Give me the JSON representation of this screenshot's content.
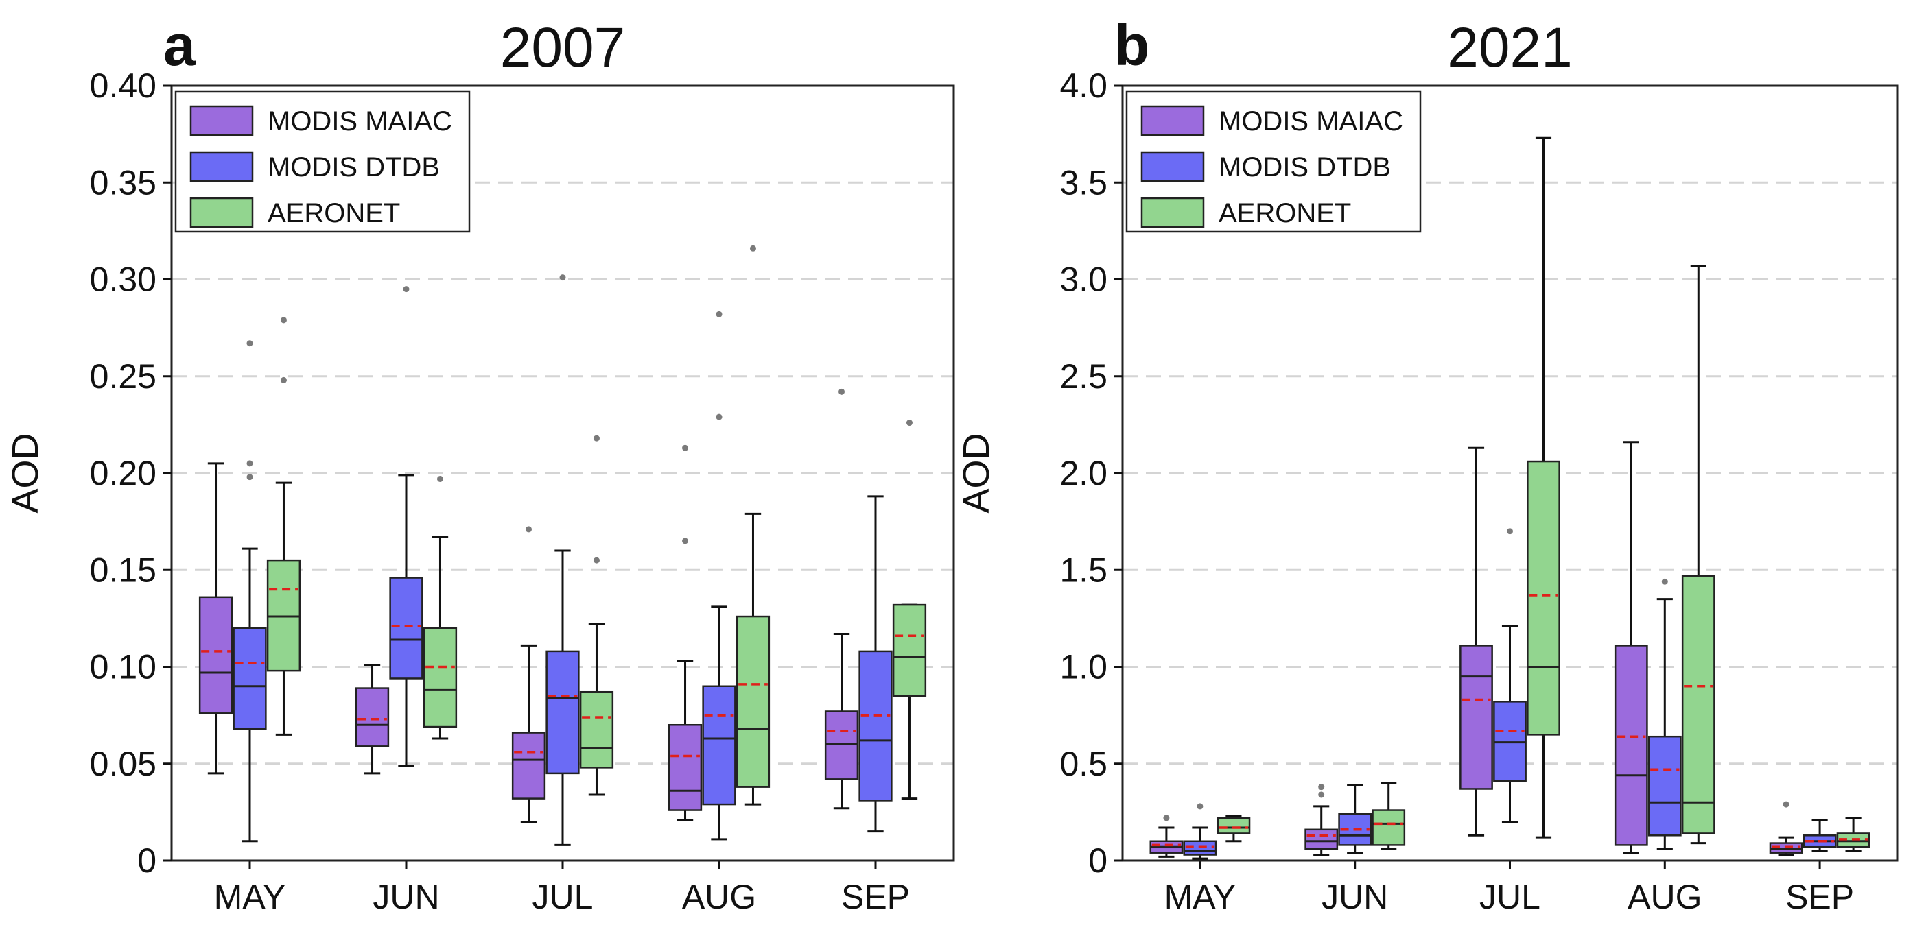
{
  "chart_data": [
    {
      "type": "box",
      "panel_label": "a",
      "title": "2007",
      "xlabel": "",
      "ylabel": "AOD",
      "ylim": [
        0,
        0.4
      ],
      "yticks": [
        0,
        0.05,
        0.1,
        0.15,
        0.2,
        0.25,
        0.3,
        0.35,
        0.4
      ],
      "ytick_labels": [
        "0",
        "0.05",
        "0.10",
        "0.15",
        "0.20",
        "0.25",
        "0.30",
        "0.35",
        "0.40"
      ],
      "grid": "horizontal dashed",
      "legend_position": "top-left",
      "categories": [
        "MAY",
        "JUN",
        "JUL",
        "AUG",
        "SEP"
      ],
      "series": [
        {
          "name": "MODIS MAIAC",
          "color": "#9b6bdd",
          "boxes": [
            {
              "whisker_low": 0.045,
              "q1": 0.076,
              "median": 0.097,
              "mean": 0.108,
              "q3": 0.136,
              "whisker_high": 0.205,
              "outliers": []
            },
            {
              "whisker_low": 0.045,
              "q1": 0.059,
              "median": 0.07,
              "mean": 0.073,
              "q3": 0.089,
              "whisker_high": 0.101,
              "outliers": []
            },
            {
              "whisker_low": 0.02,
              "q1": 0.032,
              "median": 0.052,
              "mean": 0.056,
              "q3": 0.066,
              "whisker_high": 0.111,
              "outliers": [
                0.171
              ]
            },
            {
              "whisker_low": 0.021,
              "q1": 0.026,
              "median": 0.036,
              "mean": 0.054,
              "q3": 0.07,
              "whisker_high": 0.103,
              "outliers": [
                0.165,
                0.213
              ]
            },
            {
              "whisker_low": 0.027,
              "q1": 0.042,
              "median": 0.06,
              "mean": 0.067,
              "q3": 0.077,
              "whisker_high": 0.117,
              "outliers": [
                0.242
              ]
            }
          ]
        },
        {
          "name": "MODIS DTDB",
          "color": "#6b6bf5",
          "boxes": [
            {
              "whisker_low": 0.01,
              "q1": 0.068,
              "median": 0.09,
              "mean": 0.102,
              "q3": 0.12,
              "whisker_high": 0.161,
              "outliers": [
                0.198,
                0.205,
                0.267
              ]
            },
            {
              "whisker_low": 0.049,
              "q1": 0.094,
              "median": 0.114,
              "mean": 0.121,
              "q3": 0.146,
              "whisker_high": 0.199,
              "outliers": [
                0.295
              ]
            },
            {
              "whisker_low": 0.008,
              "q1": 0.045,
              "median": 0.084,
              "mean": 0.085,
              "q3": 0.108,
              "whisker_high": 0.16,
              "outliers": [
                0.301
              ]
            },
            {
              "whisker_low": 0.011,
              "q1": 0.029,
              "median": 0.063,
              "mean": 0.075,
              "q3": 0.09,
              "whisker_high": 0.131,
              "outliers": [
                0.229,
                0.282
              ]
            },
            {
              "whisker_low": 0.015,
              "q1": 0.031,
              "median": 0.062,
              "mean": 0.075,
              "q3": 0.108,
              "whisker_high": 0.188,
              "outliers": []
            }
          ]
        },
        {
          "name": "AERONET",
          "color": "#92d58f",
          "boxes": [
            {
              "whisker_low": 0.065,
              "q1": 0.098,
              "median": 0.126,
              "mean": 0.14,
              "q3": 0.155,
              "whisker_high": 0.195,
              "outliers": [
                0.248,
                0.279
              ]
            },
            {
              "whisker_low": 0.063,
              "q1": 0.069,
              "median": 0.088,
              "mean": 0.1,
              "q3": 0.12,
              "whisker_high": 0.167,
              "outliers": [
                0.197
              ]
            },
            {
              "whisker_low": 0.034,
              "q1": 0.048,
              "median": 0.058,
              "mean": 0.074,
              "q3": 0.087,
              "whisker_high": 0.122,
              "outliers": [
                0.155,
                0.218
              ]
            },
            {
              "whisker_low": 0.029,
              "q1": 0.038,
              "median": 0.068,
              "mean": 0.091,
              "q3": 0.126,
              "whisker_high": 0.179,
              "outliers": [
                0.316
              ]
            },
            {
              "whisker_low": 0.032,
              "q1": 0.085,
              "median": 0.105,
              "mean": 0.116,
              "q3": 0.132,
              "whisker_high": 0.132,
              "outliers": [
                0.226
              ]
            }
          ]
        }
      ]
    },
    {
      "type": "box",
      "panel_label": "b",
      "title": "2021",
      "xlabel": "",
      "ylabel": "AOD",
      "ylim": [
        0,
        4.0
      ],
      "yticks": [
        0,
        0.5,
        1.0,
        1.5,
        2.0,
        2.5,
        3.0,
        3.5,
        4.0
      ],
      "ytick_labels": [
        "0",
        "0.5",
        "1.0",
        "1.5",
        "2.0",
        "2.5",
        "3.0",
        "3.5",
        "4.0"
      ],
      "grid": "horizontal dashed",
      "legend_position": "top-left",
      "categories": [
        "MAY",
        "JUN",
        "JUL",
        "AUG",
        "SEP"
      ],
      "series": [
        {
          "name": "MODIS MAIAC",
          "color": "#9b6bdd",
          "boxes": [
            {
              "whisker_low": 0.02,
              "q1": 0.04,
              "median": 0.07,
              "mean": 0.08,
              "q3": 0.1,
              "whisker_high": 0.17,
              "outliers": [
                0.22
              ]
            },
            {
              "whisker_low": 0.03,
              "q1": 0.06,
              "median": 0.1,
              "mean": 0.13,
              "q3": 0.16,
              "whisker_high": 0.28,
              "outliers": [
                0.34,
                0.38
              ]
            },
            {
              "whisker_low": 0.13,
              "q1": 0.37,
              "median": 0.95,
              "mean": 0.83,
              "q3": 1.11,
              "whisker_high": 2.13,
              "outliers": []
            },
            {
              "whisker_low": 0.04,
              "q1": 0.08,
              "median": 0.44,
              "mean": 0.64,
              "q3": 1.11,
              "whisker_high": 2.16,
              "outliers": []
            },
            {
              "whisker_low": 0.03,
              "q1": 0.04,
              "median": 0.06,
              "mean": 0.07,
              "q3": 0.09,
              "whisker_high": 0.12,
              "outliers": [
                0.29
              ]
            }
          ]
        },
        {
          "name": "MODIS DTDB",
          "color": "#6b6bf5",
          "boxes": [
            {
              "whisker_low": 0.01,
              "q1": 0.03,
              "median": 0.05,
              "mean": 0.07,
              "q3": 0.1,
              "whisker_high": 0.17,
              "outliers": [
                0.28
              ]
            },
            {
              "whisker_low": 0.04,
              "q1": 0.08,
              "median": 0.13,
              "mean": 0.16,
              "q3": 0.24,
              "whisker_high": 0.39,
              "outliers": []
            },
            {
              "whisker_low": 0.2,
              "q1": 0.41,
              "median": 0.61,
              "mean": 0.67,
              "q3": 0.82,
              "whisker_high": 1.21,
              "outliers": [
                1.7
              ]
            },
            {
              "whisker_low": 0.06,
              "q1": 0.13,
              "median": 0.3,
              "mean": 0.47,
              "q3": 0.64,
              "whisker_high": 1.35,
              "outliers": [
                1.44
              ]
            },
            {
              "whisker_low": 0.05,
              "q1": 0.07,
              "median": 0.1,
              "mean": 0.1,
              "q3": 0.13,
              "whisker_high": 0.21,
              "outliers": []
            }
          ]
        },
        {
          "name": "AERONET",
          "color": "#92d58f",
          "boxes": [
            {
              "whisker_low": 0.1,
              "q1": 0.14,
              "median": 0.17,
              "mean": 0.17,
              "q3": 0.22,
              "whisker_high": 0.23,
              "outliers": []
            },
            {
              "whisker_low": 0.06,
              "q1": 0.08,
              "median": 0.19,
              "mean": 0.19,
              "q3": 0.26,
              "whisker_high": 0.4,
              "outliers": []
            },
            {
              "whisker_low": 0.12,
              "q1": 0.65,
              "median": 1.0,
              "mean": 1.37,
              "q3": 2.06,
              "whisker_high": 3.73,
              "outliers": []
            },
            {
              "whisker_low": 0.09,
              "q1": 0.14,
              "median": 0.3,
              "mean": 0.9,
              "q3": 1.47,
              "whisker_high": 3.07,
              "outliers": []
            },
            {
              "whisker_low": 0.05,
              "q1": 0.07,
              "median": 0.1,
              "mean": 0.11,
              "q3": 0.14,
              "whisker_high": 0.22,
              "outliers": []
            }
          ]
        }
      ]
    }
  ]
}
